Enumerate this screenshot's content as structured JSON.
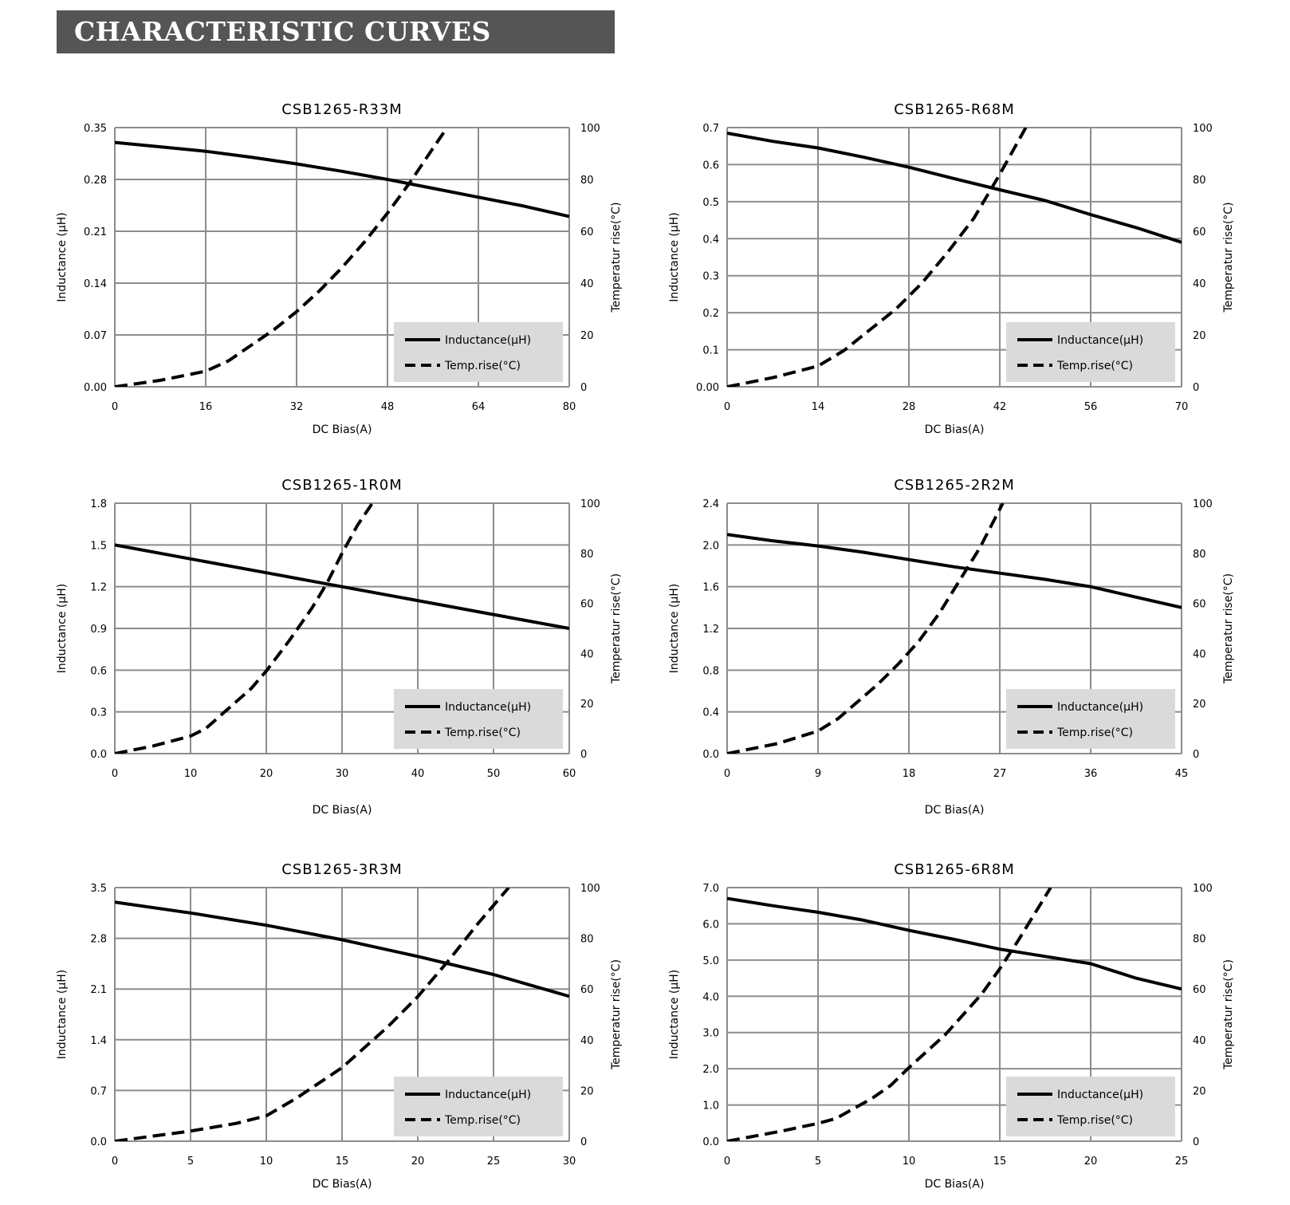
{
  "page": {
    "title": "CHARACTERISTIC CURVES"
  },
  "chart_data": [
    {
      "type": "line",
      "title": "CSB1265-R33M",
      "xlabel": "DC Bias(A)",
      "ylabel": "Inductance (μH)",
      "y2label": "Temperatur rise(°C)",
      "xlim": [
        0,
        80
      ],
      "ylim": [
        0,
        0.35
      ],
      "y2lim": [
        0,
        100
      ],
      "x_ticks": [
        "0",
        "16",
        "32",
        "48",
        "64",
        "80"
      ],
      "y_ticks": [
        "0.00",
        "0.07",
        "0.14",
        "0.21",
        "0.28",
        "0.35"
      ],
      "y2_ticks": [
        "0",
        "20",
        "40",
        "60",
        "80",
        "100"
      ],
      "grid": true,
      "legend_position": "bottom-right",
      "series": [
        {
          "name": "Inductance(μH)",
          "axis": "left",
          "style": "solid",
          "x": [
            0,
            8,
            16,
            24,
            32,
            40,
            48,
            56,
            64,
            72,
            80
          ],
          "y": [
            0.33,
            0.324,
            0.318,
            0.31,
            0.301,
            0.291,
            0.28,
            0.268,
            0.256,
            0.244,
            0.23
          ]
        },
        {
          "name": "Temp.rise(°C)",
          "axis": "right",
          "style": "dashed",
          "x": [
            0,
            8,
            16,
            20,
            24,
            28,
            32,
            36,
            40,
            44,
            48,
            52,
            56,
            58.5
          ],
          "y": [
            0,
            2.5,
            6,
            10,
            16,
            22,
            29,
            37,
            46,
            56,
            67,
            79,
            92,
            100
          ]
        }
      ]
    },
    {
      "type": "line",
      "title": "CSB1265-R68M",
      "xlabel": "DC Bias(A)",
      "ylabel": "Inductance (μH)",
      "y2label": "Temperatur rise(°C)",
      "xlim": [
        0,
        70
      ],
      "ylim": [
        0,
        0.7
      ],
      "y2lim": [
        0,
        100
      ],
      "x_ticks": [
        "0",
        "14",
        "28",
        "42",
        "56",
        "70"
      ],
      "y_ticks": [
        "0.00",
        "0.1",
        "0.2",
        "0.3",
        "0.4",
        "0.5",
        "0.6",
        "0.7"
      ],
      "y2_ticks": [
        "0",
        "20",
        "40",
        "60",
        "80",
        "100"
      ],
      "grid": true,
      "legend_position": "bottom-right",
      "series": [
        {
          "name": "Inductance(μH)",
          "axis": "left",
          "style": "solid",
          "x": [
            0,
            7,
            14,
            21,
            28,
            35,
            42,
            49,
            56,
            63,
            70
          ],
          "y": [
            0.685,
            0.663,
            0.645,
            0.62,
            0.593,
            0.562,
            0.532,
            0.503,
            0.465,
            0.43,
            0.39
          ]
        },
        {
          "name": "Temp.rise(°C)",
          "axis": "right",
          "style": "dashed",
          "x": [
            0,
            7,
            14,
            18,
            22,
            26,
            30,
            34,
            38,
            42,
            46
          ],
          "y": [
            0,
            3.5,
            8,
            14,
            22,
            30,
            40,
            52,
            65,
            82,
            100
          ]
        }
      ]
    },
    {
      "type": "line",
      "title": "CSB1265-1R0M",
      "xlabel": "DC Bias(A)",
      "ylabel": "Inductance (μH)",
      "y2label": "Temperatur rise(°C)",
      "xlim": [
        0,
        60
      ],
      "ylim": [
        0,
        1.8
      ],
      "y2lim": [
        0,
        100
      ],
      "x_ticks": [
        "0",
        "10",
        "20",
        "30",
        "40",
        "50",
        "60"
      ],
      "y_ticks": [
        "0.0",
        "0.3",
        "0.6",
        "0.9",
        "1.2",
        "1.5",
        "1.8"
      ],
      "y2_ticks": [
        "0",
        "20",
        "40",
        "60",
        "80",
        "100"
      ],
      "grid": true,
      "legend_position": "bottom-right",
      "series": [
        {
          "name": "Inductance(μH)",
          "axis": "left",
          "style": "solid",
          "x": [
            0,
            10,
            20,
            30,
            40,
            50,
            60
          ],
          "y": [
            1.5,
            1.4,
            1.3,
            1.2,
            1.1,
            1.0,
            0.9
          ]
        },
        {
          "name": "Temp.rise(°C)",
          "axis": "right",
          "style": "dashed",
          "x": [
            0,
            5,
            10,
            12,
            15,
            18,
            20,
            23,
            26,
            28,
            30,
            32,
            34
          ],
          "y": [
            0,
            3,
            7,
            10,
            18,
            26,
            33,
            45,
            58,
            68,
            80,
            91,
            100
          ]
        }
      ]
    },
    {
      "type": "line",
      "title": "CSB1265-2R2M",
      "xlabel": "DC Bias(A)",
      "ylabel": "Inductance (μH)",
      "y2label": "Temperatur rise(°C)",
      "xlim": [
        0,
        45
      ],
      "ylim": [
        0,
        2.4
      ],
      "y2lim": [
        0,
        100
      ],
      "x_ticks": [
        "0",
        "9",
        "18",
        "27",
        "36",
        "45"
      ],
      "y_ticks": [
        "0.0",
        "0.4",
        "0.8",
        "1.2",
        "1.6",
        "2.0",
        "2.4"
      ],
      "y2_ticks": [
        "0",
        "20",
        "40",
        "60",
        "80",
        "100"
      ],
      "grid": true,
      "legend_position": "bottom-right",
      "series": [
        {
          "name": "Inductance(μH)",
          "axis": "left",
          "style": "solid",
          "x": [
            0,
            4.5,
            9,
            13.5,
            18,
            22.5,
            27,
            31.5,
            36,
            40.5,
            45
          ],
          "y": [
            2.1,
            2.04,
            1.99,
            1.93,
            1.86,
            1.79,
            1.73,
            1.67,
            1.6,
            1.5,
            1.4
          ]
        },
        {
          "name": "Temp.rise(°C)",
          "axis": "right",
          "style": "dashed",
          "x": [
            0,
            5,
            9,
            11,
            13,
            15,
            17,
            19,
            21,
            23,
            25,
            27.3
          ],
          "y": [
            0,
            4,
            9,
            14,
            21,
            28,
            36,
            45,
            56,
            69,
            82,
            100
          ]
        }
      ]
    },
    {
      "type": "line",
      "title": "CSB1265-3R3M",
      "xlabel": "DC Bias(A)",
      "ylabel": "Inductance (μH)",
      "y2label": "Temperatur rise(°C)",
      "xlim": [
        0,
        30
      ],
      "ylim": [
        0,
        3.5
      ],
      "y2lim": [
        0,
        100
      ],
      "x_ticks": [
        "0",
        "5",
        "10",
        "15",
        "20",
        "25",
        "30"
      ],
      "y_ticks": [
        "0.0",
        "0.7",
        "1.4",
        "2.1",
        "2.8",
        "3.5"
      ],
      "y2_ticks": [
        "0",
        "20",
        "40",
        "60",
        "80",
        "100"
      ],
      "grid": true,
      "legend_position": "bottom-right",
      "series": [
        {
          "name": "Inductance(μH)",
          "axis": "left",
          "style": "solid",
          "x": [
            0,
            5,
            10,
            15,
            20,
            25,
            30
          ],
          "y": [
            3.3,
            3.15,
            2.98,
            2.78,
            2.55,
            2.3,
            2.0
          ]
        },
        {
          "name": "Temp.rise(°C)",
          "axis": "right",
          "style": "dashed",
          "x": [
            0,
            5,
            8,
            10,
            12,
            15,
            18,
            20,
            22,
            24,
            26
          ],
          "y": [
            0,
            4,
            7,
            10,
            17,
            29,
            45,
            57,
            71,
            86,
            100
          ]
        }
      ]
    },
    {
      "type": "line",
      "title": "CSB1265-6R8M",
      "xlabel": "DC Bias(A)",
      "ylabel": "Inductance (μH)",
      "y2label": "Temperatur rise(°C)",
      "xlim": [
        0,
        25
      ],
      "ylim": [
        0,
        7.0
      ],
      "y2lim": [
        0,
        100
      ],
      "x_ticks": [
        "0",
        "5",
        "10",
        "15",
        "20",
        "25"
      ],
      "y_ticks": [
        "0.0",
        "1.0",
        "2.0",
        "3.0",
        "4.0",
        "5.0",
        "6.0",
        "7.0"
      ],
      "y2_ticks": [
        "0",
        "20",
        "40",
        "60",
        "80",
        "100"
      ],
      "grid": true,
      "legend_position": "bottom-right",
      "series": [
        {
          "name": "Inductance(μH)",
          "axis": "left",
          "style": "solid",
          "x": [
            0,
            2.5,
            5,
            7.5,
            10,
            12.5,
            15,
            17.5,
            20,
            22.5,
            25
          ],
          "y": [
            6.7,
            6.5,
            6.32,
            6.1,
            5.82,
            5.57,
            5.3,
            5.1,
            4.9,
            4.5,
            4.2
          ]
        },
        {
          "name": "Temp.rise(°C)",
          "axis": "right",
          "style": "dashed",
          "x": [
            0,
            3,
            5,
            6,
            8,
            9,
            10,
            12,
            14,
            15,
            16,
            17.8
          ],
          "y": [
            0,
            4,
            7,
            9,
            17,
            22,
            29,
            42,
            58,
            68,
            79,
            100
          ]
        }
      ]
    }
  ]
}
